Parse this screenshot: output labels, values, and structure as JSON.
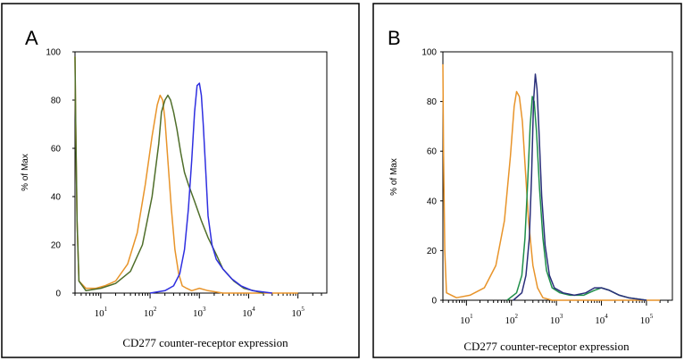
{
  "colors": {
    "orange": "#e8942a",
    "olive": "#4f6e2a",
    "blue": "#2f2fe0",
    "green": "#1f8f4a",
    "navy": "#2a2f7a",
    "frame": "#000000"
  },
  "chart_data": [
    {
      "type": "line",
      "panel_label": "A",
      "xscale": "log",
      "xlim": [
        3,
        300000
      ],
      "ylim": [
        0,
        100
      ],
      "ylabel": "% of Max",
      "xlabel": "CD277 counter-receptor expression",
      "yticks": [
        "0",
        "20",
        "40",
        "60",
        "80",
        "100"
      ],
      "xticks": [
        {
          "base": "10",
          "exp": "1",
          "value": 10
        },
        {
          "base": "10",
          "exp": "2",
          "value": 100
        },
        {
          "base": "10",
          "exp": "3",
          "value": 1000
        },
        {
          "base": "10",
          "exp": "4",
          "value": 10000
        },
        {
          "base": "10",
          "exp": "5",
          "value": 100000
        }
      ],
      "series": [
        {
          "color": "orange",
          "x": [
            3,
            3.1,
            3.3,
            3.6,
            5,
            8,
            12,
            20,
            35,
            55,
            80,
            110,
            140,
            160,
            180,
            200,
            230,
            270,
            320,
            380,
            450,
            550,
            700,
            1000,
            1500,
            3000,
            100000
          ],
          "y": [
            98,
            70,
            30,
            5,
            2,
            2,
            3,
            5,
            12,
            25,
            45,
            65,
            78,
            82,
            80,
            72,
            55,
            35,
            18,
            8,
            3,
            2,
            1,
            2,
            1,
            0,
            0
          ]
        },
        {
          "color": "olive",
          "x": [
            3,
            3.1,
            3.3,
            3.6,
            5,
            10,
            20,
            40,
            70,
            110,
            150,
            170,
            200,
            230,
            260,
            300,
            350,
            420,
            500,
            600,
            800,
            1100,
            1500,
            2200,
            3000,
            5000,
            8000,
            20000
          ],
          "y": [
            98,
            70,
            30,
            5,
            1,
            2,
            4,
            9,
            20,
            40,
            62,
            75,
            80,
            82,
            80,
            75,
            68,
            58,
            50,
            45,
            38,
            30,
            23,
            16,
            10,
            5,
            2,
            0
          ]
        },
        {
          "color": "blue",
          "x": [
            100,
            200,
            300,
            400,
            500,
            600,
            700,
            800,
            900,
            1000,
            1100,
            1200,
            1350,
            1500,
            1800,
            2200,
            3000,
            4500,
            7000,
            12000,
            30000
          ],
          "y": [
            0,
            1,
            3,
            8,
            18,
            35,
            55,
            75,
            86,
            87,
            82,
            70,
            50,
            32,
            20,
            14,
            10,
            6,
            3,
            1,
            0
          ]
        }
      ]
    },
    {
      "type": "line",
      "panel_label": "B",
      "xscale": "log",
      "xlim": [
        3,
        300000
      ],
      "ylim": [
        0,
        100
      ],
      "ylabel": "% of Max",
      "xlabel": "CD277 counter-receptor expression",
      "yticks": [
        "0",
        "20",
        "40",
        "60",
        "80",
        "100"
      ],
      "xticks": [
        {
          "base": "10",
          "exp": "1",
          "value": 10
        },
        {
          "base": "10",
          "exp": "2",
          "value": 100
        },
        {
          "base": "10",
          "exp": "3",
          "value": 1000
        },
        {
          "base": "10",
          "exp": "4",
          "value": 10000
        },
        {
          "base": "10",
          "exp": "5",
          "value": 100000
        }
      ],
      "series": [
        {
          "color": "orange",
          "x": [
            3,
            3.1,
            3.3,
            3.6,
            6,
            12,
            25,
            45,
            70,
            95,
            115,
            130,
            150,
            175,
            200,
            240,
            300,
            380,
            500,
            800,
            200000
          ],
          "y": [
            95,
            60,
            20,
            3,
            1,
            2,
            5,
            14,
            32,
            58,
            78,
            84,
            82,
            72,
            55,
            32,
            14,
            5,
            1,
            0,
            0
          ]
        },
        {
          "color": "green",
          "x": [
            80,
            130,
            170,
            200,
            230,
            260,
            290,
            320,
            360,
            420,
            500,
            600,
            800,
            1200,
            2000,
            4000,
            7000,
            10000,
            15000,
            25000,
            40000,
            100000
          ],
          "y": [
            0,
            3,
            10,
            25,
            48,
            70,
            82,
            80,
            68,
            45,
            25,
            12,
            5,
            3,
            2,
            2,
            4,
            5,
            4,
            2,
            1,
            0
          ]
        },
        {
          "color": "navy",
          "x": [
            110,
            170,
            210,
            250,
            280,
            310,
            340,
            370,
            410,
            470,
            560,
            700,
            900,
            1400,
            2500,
            4500,
            7000,
            10000,
            15000,
            25000,
            40000,
            100000
          ],
          "y": [
            0,
            3,
            10,
            25,
            50,
            80,
            91,
            85,
            68,
            42,
            22,
            10,
            5,
            3,
            2,
            3,
            5,
            5,
            4,
            2,
            1,
            0
          ]
        }
      ]
    }
  ]
}
